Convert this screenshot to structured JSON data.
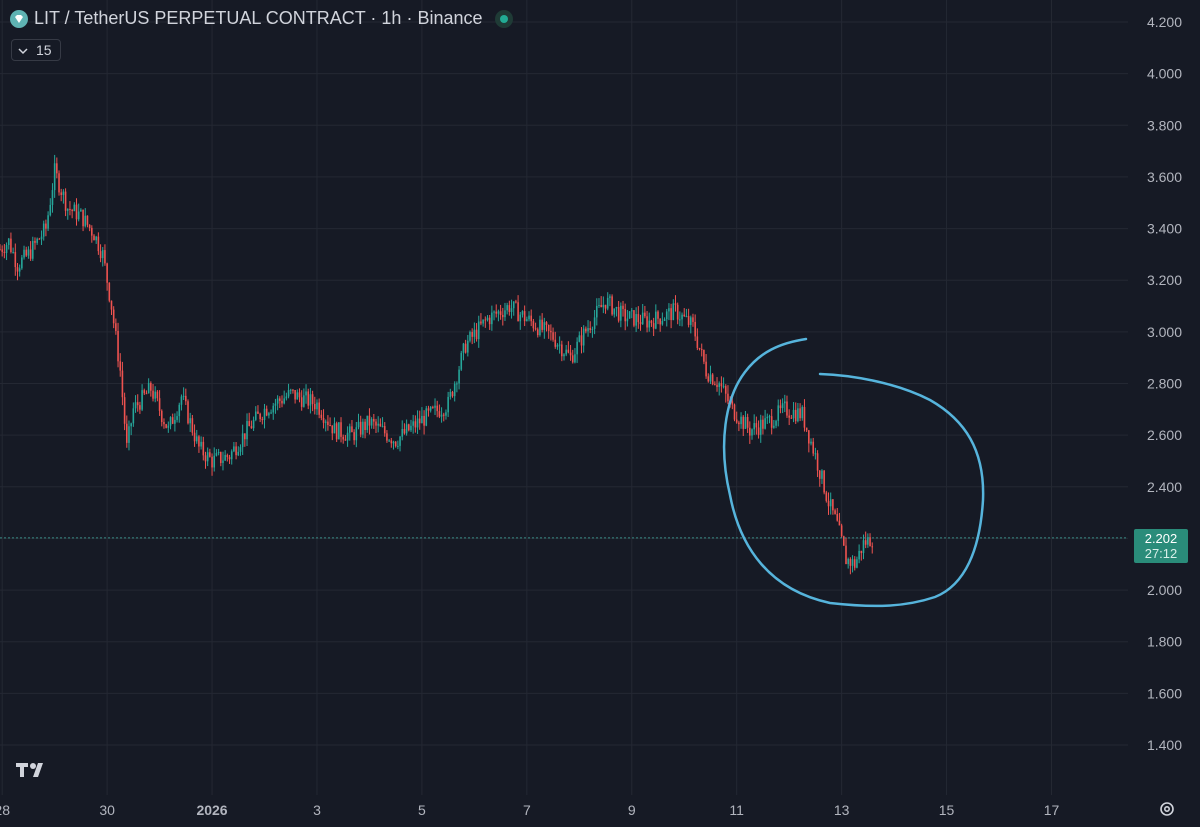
{
  "header": {
    "title": "LIT / TetherUS PERPETUAL CONTRACT · 1h · Binance",
    "logo_icon": "gem-icon",
    "status_icon": "market-open-dot"
  },
  "indicator": {
    "label": "15",
    "icon": "chevron-down-icon"
  },
  "price_badge": {
    "price": "2.202",
    "countdown": "27:12",
    "color": "#2a8c7a"
  },
  "colors": {
    "background": "#161a25",
    "up": "#26a69a",
    "down": "#ef5350",
    "annotation": "#56b4dc",
    "grid": "#242833"
  },
  "footer": {
    "brand_logo": "tradingview-logo",
    "settings_icon": "gear-icon"
  },
  "chart_data": {
    "type": "candlestick",
    "title": "LIT / TetherUS PERPETUAL CONTRACT · 1h · Binance",
    "interval": "1h",
    "ylim": [
      1.3,
      4.25
    ],
    "yticks": [
      "4.200",
      "4.000",
      "3.800",
      "3.600",
      "3.400",
      "3.200",
      "3.000",
      "2.800",
      "2.600",
      "2.400",
      "2.200",
      "2.000",
      "1.800",
      "1.600",
      "1.400"
    ],
    "x_range": [
      "2025-12-27T23:00",
      "2026-01-18T11:00"
    ],
    "xticks": [
      {
        "label": "28",
        "date": "2025-12-28T00:00"
      },
      {
        "label": "30",
        "date": "2025-12-30T00:00"
      },
      {
        "label": "2026",
        "date": "2026-01-01T00:00",
        "bold": true
      },
      {
        "label": "3",
        "date": "2026-01-03T00:00"
      },
      {
        "label": "5",
        "date": "2026-01-05T00:00"
      },
      {
        "label": "7",
        "date": "2026-01-07T00:00"
      },
      {
        "label": "9",
        "date": "2026-01-09T00:00"
      },
      {
        "label": "11",
        "date": "2026-01-11T00:00"
      },
      {
        "label": "13",
        "date": "2026-01-13T00:00"
      },
      {
        "label": "15",
        "date": "2026-01-15T00:00"
      },
      {
        "label": "17",
        "date": "2026-01-17T00:00"
      }
    ],
    "grid": true,
    "last_price": 2.202,
    "approx_series": {
      "note_free_points": true,
      "points": [
        [
          "2025-12-27T23:00",
          3.32
        ],
        [
          "2025-12-28T03:00",
          3.35
        ],
        [
          "2025-12-28T07:00",
          3.26
        ],
        [
          "2025-12-28T12:00",
          3.3
        ],
        [
          "2025-12-28T20:00",
          3.4
        ],
        [
          "2025-12-29T00:00",
          3.62
        ],
        [
          "2025-12-29T06:00",
          3.48
        ],
        [
          "2025-12-29T12:00",
          3.45
        ],
        [
          "2025-12-29T18:00",
          3.38
        ],
        [
          "2025-12-29T22:00",
          3.3
        ],
        [
          "2025-12-30T02:00",
          3.1
        ],
        [
          "2025-12-30T06:00",
          2.85
        ],
        [
          "2025-12-30T09:00",
          2.55
        ],
        [
          "2025-12-30T12:00",
          2.7
        ],
        [
          "2025-12-30T20:00",
          2.78
        ],
        [
          "2025-12-31T04:00",
          2.62
        ],
        [
          "2025-12-31T10:00",
          2.75
        ],
        [
          "2025-12-31T18:00",
          2.55
        ],
        [
          "2026-01-01T00:00",
          2.5
        ],
        [
          "2026-01-01T08:00",
          2.52
        ],
        [
          "2026-01-01T16:00",
          2.62
        ],
        [
          "2026-01-02T00:00",
          2.7
        ],
        [
          "2026-01-02T12:00",
          2.76
        ],
        [
          "2026-01-03T00:00",
          2.72
        ],
        [
          "2026-01-03T08:00",
          2.62
        ],
        [
          "2026-01-03T16:00",
          2.6
        ],
        [
          "2026-01-04T00:00",
          2.65
        ],
        [
          "2026-01-04T12:00",
          2.58
        ],
        [
          "2026-01-05T00:00",
          2.66
        ],
        [
          "2026-01-05T12:00",
          2.72
        ],
        [
          "2026-01-05T20:00",
          2.95
        ],
        [
          "2026-01-06T06:00",
          3.05
        ],
        [
          "2026-01-06T16:00",
          3.1
        ],
        [
          "2026-01-07T00:00",
          3.05
        ],
        [
          "2026-01-07T12:00",
          2.98
        ],
        [
          "2026-01-07T20:00",
          2.9
        ],
        [
          "2026-01-08T04:00",
          3.02
        ],
        [
          "2026-01-08T12:00",
          3.12
        ],
        [
          "2026-01-08T20:00",
          3.06
        ],
        [
          "2026-01-09T08:00",
          3.04
        ],
        [
          "2026-01-09T20:00",
          3.08
        ],
        [
          "2026-01-10T04:00",
          3.02
        ],
        [
          "2026-01-10T10:00",
          2.85
        ],
        [
          "2026-01-10T16:00",
          2.8
        ],
        [
          "2026-01-10T22:00",
          2.7
        ],
        [
          "2026-01-11T06:00",
          2.62
        ],
        [
          "2026-01-11T14:00",
          2.65
        ],
        [
          "2026-01-11T22:00",
          2.7
        ],
        [
          "2026-01-12T06:00",
          2.68
        ],
        [
          "2026-01-12T12:00",
          2.52
        ],
        [
          "2026-01-12T18:00",
          2.34
        ],
        [
          "2026-01-12T22:00",
          2.25
        ],
        [
          "2026-01-13T02:00",
          2.12
        ],
        [
          "2026-01-13T06:00",
          2.1
        ],
        [
          "2026-01-13T10:00",
          2.18
        ],
        [
          "2026-01-13T14:00",
          2.202
        ]
      ]
    }
  }
}
